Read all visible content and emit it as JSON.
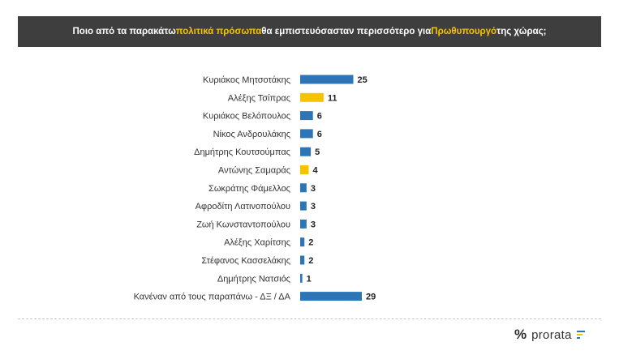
{
  "title": {
    "part1": "Ποιο από τα παρακάτω ",
    "highlight1": "πολιτικά πρόσωπα",
    "part2": " θα εμπιστευόσασταν περισσότερο για ",
    "highlight2": "Πρωθυπουργό",
    "part3": " της χώρας;"
  },
  "brand": {
    "name": "prorata",
    "mark": "%"
  },
  "colors": {
    "blue": "#2e75b6",
    "yellow": "#f5c400",
    "title_bg": "#3e3e3e",
    "highlight": "#f5c400"
  },
  "chart_data": {
    "type": "bar",
    "orientation": "horizontal",
    "title": "Ποιο από τα παρακάτω πολιτικά πρόσωπα θα εμπιστευόσασταν περισσότερο για Πρωθυπουργό της χώρας;",
    "xlabel": "",
    "ylabel": "",
    "xlim": [
      0,
      29
    ],
    "categories": [
      "Κυριάκος Μητσοτάκης",
      "Αλέξης Τσίπρας",
      "Κυριάκος Βελόπουλος",
      "Νίκος Ανδρουλάκης",
      "Δημήτρης Κουτσούμπας",
      "Αντώνης Σαμαράς",
      "Σωκράτης Φάμελλος",
      "Αφροδίτη Λατινοπούλου",
      "Ζωή Κωνσταντοπούλου",
      "Αλέξης Χαρίτσης",
      "Στέφανος Κασσελάκης",
      "Δημήτρης Νατσιός",
      "Κανέναν από τους παραπάνω - ΔΞ / ΔΑ"
    ],
    "values": [
      25,
      11,
      6,
      6,
      5,
      4,
      3,
      3,
      3,
      2,
      2,
      1,
      29
    ],
    "bar_colors": [
      "blue",
      "yellow",
      "blue",
      "blue",
      "blue",
      "yellow",
      "blue",
      "blue",
      "blue",
      "blue",
      "blue",
      "blue",
      "blue"
    ],
    "data_labels": [
      "25",
      "11",
      "6",
      "6",
      "5",
      "4",
      "3",
      "3",
      "3",
      "2",
      "2",
      "1",
      "29"
    ]
  }
}
